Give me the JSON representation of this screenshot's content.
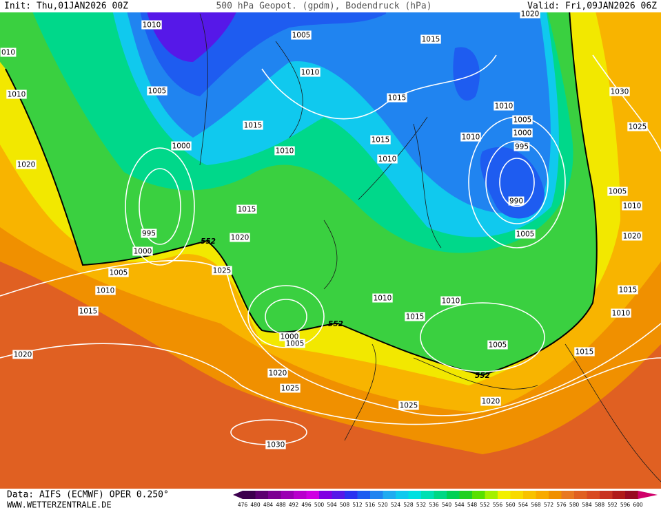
{
  "header": {
    "init": "Init: Thu,01JAN2026 00Z",
    "title": "500 hPa Geopot. (gpdm), Bodendruck (hPa)",
    "valid": "Valid: Fri,09JAN2026 06Z"
  },
  "footer": {
    "source": "Data: AIFS (ECMWF) OPER 0.250°",
    "website": "WWW.WETTERZENTRALE.DE"
  },
  "legend": {
    "levels": [
      476,
      480,
      484,
      488,
      492,
      496,
      500,
      504,
      508,
      512,
      516,
      520,
      524,
      528,
      532,
      536,
      540,
      544,
      548,
      552,
      556,
      560,
      564,
      568,
      572,
      576,
      580,
      584,
      588,
      592,
      596,
      600
    ],
    "colors": [
      "#3c004e",
      "#5c0070",
      "#7c0092",
      "#9a00b2",
      "#b800cc",
      "#cf00e2",
      "#8000e2",
      "#5618e8",
      "#2a32f0",
      "#1e5cf0",
      "#2084f0",
      "#20abf0",
      "#10c9ee",
      "#00e0e0",
      "#00e0b2",
      "#00d884",
      "#00d054",
      "#22d022",
      "#58e000",
      "#a4f000",
      "#f2f000",
      "#f8da00",
      "#f8c200",
      "#f8aa00",
      "#f09000",
      "#e87822",
      "#e06022",
      "#d84a22",
      "#c83222",
      "#b01a1a",
      "#980a22",
      "#d0006a"
    ]
  },
  "map": {
    "contour_label": "552",
    "isobar_labels": [
      "1010",
      "1005",
      "1015",
      "1020",
      "010",
      "1010",
      "1005",
      "1010",
      "1030",
      "1015",
      "1010",
      "1005",
      "1015",
      "1000",
      "1025",
      "1015",
      "1010",
      "995",
      "1000",
      "1010",
      "1010",
      "1020",
      "1005",
      "990",
      "1010",
      "1015",
      "995",
      "1005",
      "1020",
      "1020",
      "1000",
      "1025",
      "1005",
      "1010",
      "1015",
      "1010",
      "1010",
      "1015",
      "1010",
      "1015",
      "1000",
      "1005",
      "1005",
      "1015",
      "1020",
      "1020",
      "1025",
      "1020",
      "1025",
      "1030"
    ]
  }
}
